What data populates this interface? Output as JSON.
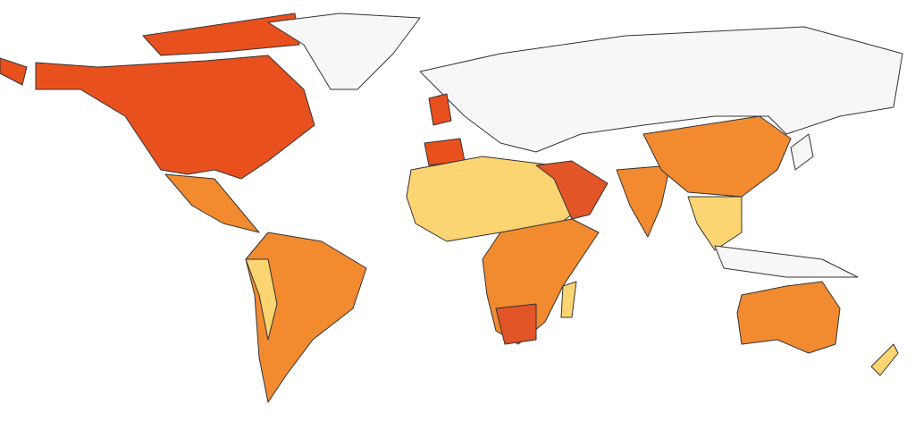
{
  "chart_data": {
    "type": "choropleth",
    "colors": [
      "#e8501e",
      "#f28a30",
      "#fcd471",
      "#f7f7f7",
      "#e25527"
    ]
  }
}
